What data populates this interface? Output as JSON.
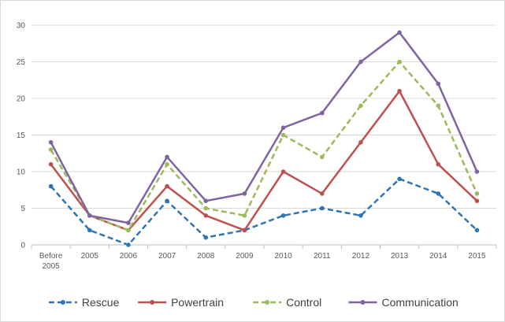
{
  "chart_data": {
    "type": "line",
    "categories": [
      "Before 2005",
      "2005",
      "2006",
      "2007",
      "2008",
      "2009",
      "2010",
      "2011",
      "2012",
      "2013",
      "2014",
      "2015"
    ],
    "ylim": [
      0,
      30
    ],
    "yticks": [
      0,
      5,
      10,
      15,
      20,
      25,
      30
    ],
    "grid": true,
    "legend_position": "bottom",
    "series": [
      {
        "name": "Rescue",
        "color": "#2E75B6",
        "dashed": true,
        "values": [
          8,
          2,
          0,
          6,
          1,
          2,
          4,
          5,
          4,
          9,
          7,
          2
        ]
      },
      {
        "name": "Powertrain",
        "color": "#C0504D",
        "dashed": false,
        "values": [
          11,
          4,
          2,
          8,
          4,
          2,
          10,
          7,
          14,
          21,
          11,
          6
        ]
      },
      {
        "name": "Control",
        "color": "#9BBB59",
        "dashed": true,
        "values": [
          13,
          4,
          2,
          11,
          5,
          4,
          15,
          12,
          19,
          25,
          19,
          7
        ]
      },
      {
        "name": "Communication",
        "color": "#8064A2",
        "dashed": false,
        "values": [
          14,
          4,
          3,
          12,
          6,
          7,
          16,
          18,
          25,
          29,
          22,
          10
        ]
      }
    ]
  }
}
